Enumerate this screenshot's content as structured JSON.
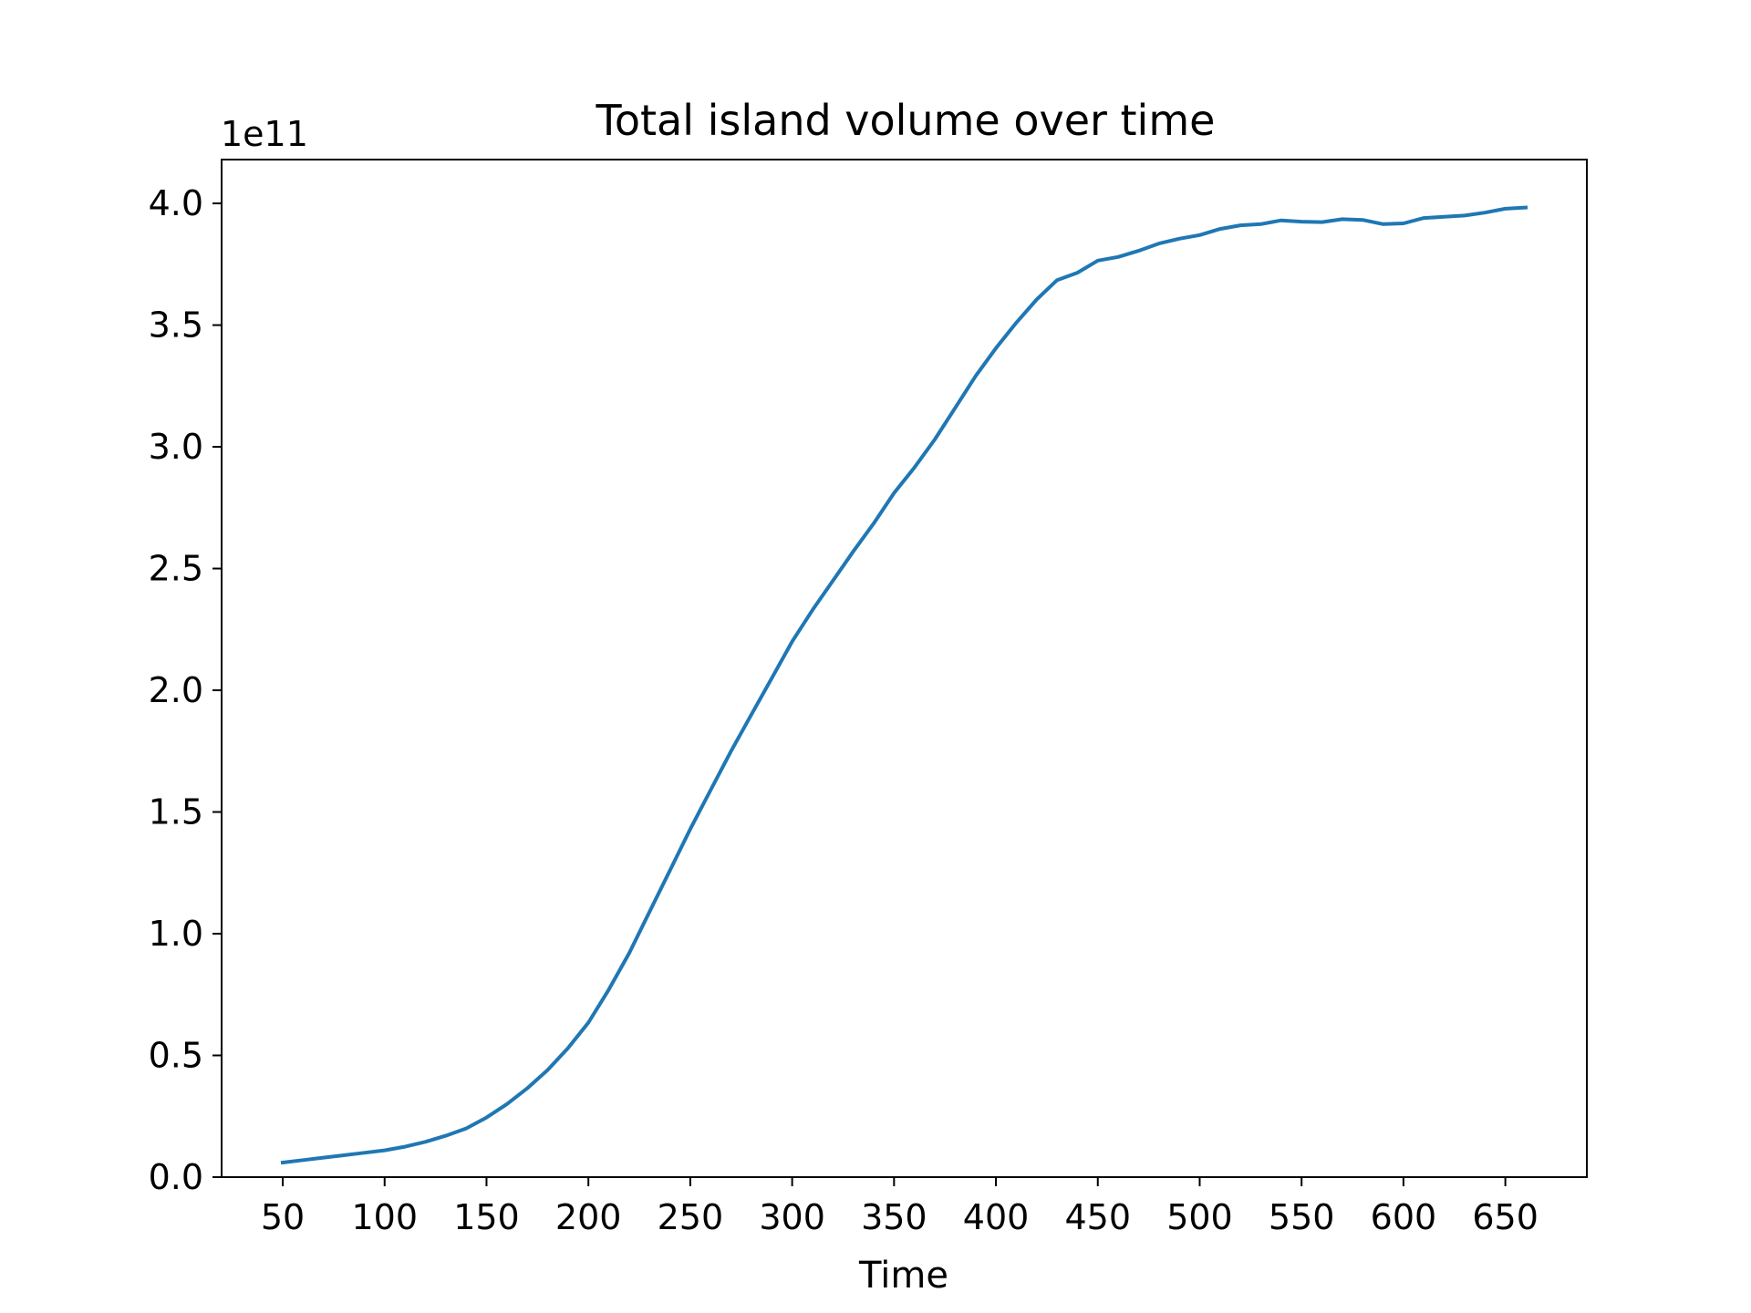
{
  "chart_data": {
    "type": "line",
    "title": "Total island volume over time",
    "xlabel": "Time",
    "ylabel": "",
    "y_offset_label": "1e11",
    "xlim": [
      20,
      690
    ],
    "ylim": [
      0,
      4.18
    ],
    "y_scale_factor": 100000000000,
    "x_ticks": [
      50,
      100,
      150,
      200,
      250,
      300,
      350,
      400,
      450,
      500,
      550,
      600,
      650
    ],
    "x_tick_labels": [
      "50",
      "100",
      "150",
      "200",
      "250",
      "300",
      "350",
      "400",
      "450",
      "500",
      "550",
      "600",
      "650"
    ],
    "y_ticks": [
      0,
      0.5,
      1.0,
      1.5,
      2.0,
      2.5,
      3.0,
      3.5,
      4.0
    ],
    "y_tick_labels": [
      "0.0",
      "0.5",
      "1.0",
      "1.5",
      "2.0",
      "2.5",
      "3.0",
      "3.5",
      "4.0"
    ],
    "grid": false,
    "series": [
      {
        "color": "#1f77b4",
        "x": [
          50,
          60,
          70,
          80,
          90,
          100,
          110,
          120,
          130,
          140,
          150,
          160,
          170,
          180,
          190,
          200,
          210,
          220,
          230,
          240,
          250,
          260,
          270,
          280,
          290,
          300,
          310,
          320,
          330,
          340,
          350,
          360,
          370,
          380,
          390,
          400,
          410,
          420,
          430,
          440,
          450,
          460,
          470,
          480,
          490,
          500,
          510,
          520,
          530,
          540,
          550,
          560,
          570,
          580,
          590,
          600,
          610,
          620,
          630,
          640,
          650,
          660
        ],
        "y": [
          0.06,
          0.07,
          0.08,
          0.09,
          0.1,
          0.11,
          0.125,
          0.145,
          0.17,
          0.2,
          0.245,
          0.3,
          0.365,
          0.44,
          0.53,
          0.635,
          0.77,
          0.92,
          1.09,
          1.26,
          1.43,
          1.59,
          1.75,
          1.9,
          2.05,
          2.2,
          2.33,
          2.45,
          2.57,
          2.685,
          2.81,
          2.915,
          3.03,
          3.16,
          3.29,
          3.405,
          3.51,
          3.605,
          3.685,
          3.715,
          3.765,
          3.78,
          3.805,
          3.835,
          3.855,
          3.87,
          3.895,
          3.91,
          3.915,
          3.93,
          3.925,
          3.923,
          3.935,
          3.932,
          3.915,
          3.918,
          3.94,
          3.945,
          3.95,
          3.962,
          3.978,
          3.983
        ]
      }
    ]
  }
}
